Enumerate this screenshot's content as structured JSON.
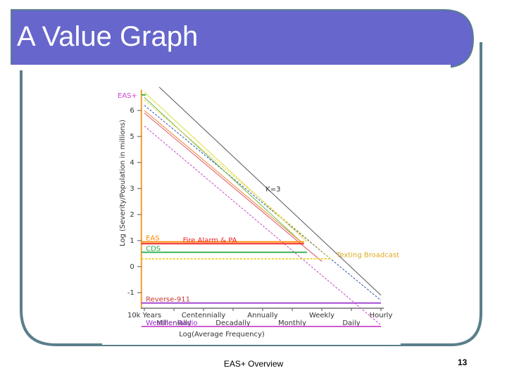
{
  "slide": {
    "title": "A Value Graph",
    "footer": "EAS+ Overview",
    "page_number": "13"
  },
  "colors": {
    "banner": "#6666cc",
    "banner_outline": "#5a7f8a",
    "panel_outline": "#5a7f8a",
    "bar": "#ffffff"
  },
  "chart_data": {
    "type": "line",
    "ylabel": "Log (Severity/Population in millions)",
    "xlabel": "Log(Average Frequency)",
    "ylim": [
      -1.6,
      7
    ],
    "xlim": [
      0,
      11
    ],
    "y_ticks": [
      {
        "value": 6,
        "label": "6"
      },
      {
        "value": 5,
        "label": "5"
      },
      {
        "value": 4,
        "label": "4"
      },
      {
        "value": 3,
        "label": "3"
      },
      {
        "value": 2,
        "label": "2"
      },
      {
        "value": 1,
        "label": "1"
      },
      {
        "value": 0,
        "label": "0"
      },
      {
        "value": -1,
        "label": "-1"
      }
    ],
    "y_top_label": "EAS+",
    "x_ticks": [
      {
        "value": 0,
        "label": "10k Years",
        "row": 1
      },
      {
        "value": 1,
        "label": "Millenially",
        "row": 2
      },
      {
        "value": 2,
        "label": "Centennially",
        "row": 1
      },
      {
        "value": 3,
        "label": "Decadally",
        "row": 2
      },
      {
        "value": 4,
        "label": "Annually",
        "row": 1
      },
      {
        "value": 5,
        "label": "Monthly",
        "row": 2
      },
      {
        "value": 6,
        "label": "Weekly",
        "row": 1
      },
      {
        "value": 7,
        "label": "Daily",
        "row": 2
      },
      {
        "value": 8,
        "label": "Hourly",
        "row": 1
      }
    ],
    "levels": [
      {
        "label": "EAS+",
        "y": 6.6,
        "x_end": 0.05,
        "color": "#33aa33",
        "label_color": "#cc44cc",
        "show_label": false
      },
      {
        "label": "EAS",
        "y": 0.95,
        "x_end": 5.4,
        "color": "#ff8800",
        "label_color": "#ff8800",
        "show_label": true
      },
      {
        "label": "Fire Alarm & PA",
        "y": 0.88,
        "x_end": 5.4,
        "color": "#ee2222",
        "label_color": "#ee2222",
        "show_label": true,
        "label_x": 1.3
      },
      {
        "label": "CDS",
        "y": 0.55,
        "x_end": 5.5,
        "color": "#22aa44",
        "label_color": "#22aa44",
        "show_label": true
      },
      {
        "label": "Texting Broadcast",
        "y": 0.3,
        "x_end": 6.3,
        "color": "#eecc22",
        "label_color": "#ddaa22",
        "show_label": true,
        "label_x": 6.5,
        "dashed": true
      },
      {
        "label": "Reverse-911",
        "y": -1.4,
        "x_end": 8.0,
        "color": "#9933cc",
        "label_color": "#cc3333",
        "show_label": true
      },
      {
        "label": "Weather Radio",
        "y": -2.3,
        "x_end": 8.0,
        "color": "#cc44cc",
        "label_color": "#9933cc",
        "show_label": true
      }
    ],
    "series": [
      {
        "name": "K=3",
        "color": "#555555",
        "points": [
          [
            0.5,
            6.9
          ],
          [
            8.0,
            -1.1
          ]
        ],
        "label_x": 4.1,
        "label_y": 3.0
      },
      {
        "color": "#3355aa",
        "dashed": true,
        "points": [
          [
            0.0,
            6.2
          ],
          [
            8.0,
            -1.3
          ]
        ]
      },
      {
        "color": "#66bb44",
        "points": [
          [
            0.0,
            6.5
          ],
          [
            5.3,
            0.95
          ]
        ]
      },
      {
        "color": "#dddd44",
        "points": [
          [
            0.0,
            6.7
          ],
          [
            5.5,
            0.95
          ]
        ]
      },
      {
        "color": "#eecc44",
        "dashed": true,
        "points": [
          [
            0.0,
            6.4
          ],
          [
            6.3,
            0.3
          ]
        ]
      },
      {
        "color": "#ee8833",
        "points": [
          [
            0.0,
            6.0
          ],
          [
            5.3,
            0.95
          ]
        ]
      },
      {
        "color": "#dd5566",
        "points": [
          [
            0.0,
            5.9
          ],
          [
            6.0,
            0.2
          ]
        ]
      },
      {
        "color": "#cc44cc",
        "dashed": true,
        "points": [
          [
            0.0,
            5.4
          ],
          [
            8.0,
            -2.25
          ]
        ]
      }
    ]
  }
}
